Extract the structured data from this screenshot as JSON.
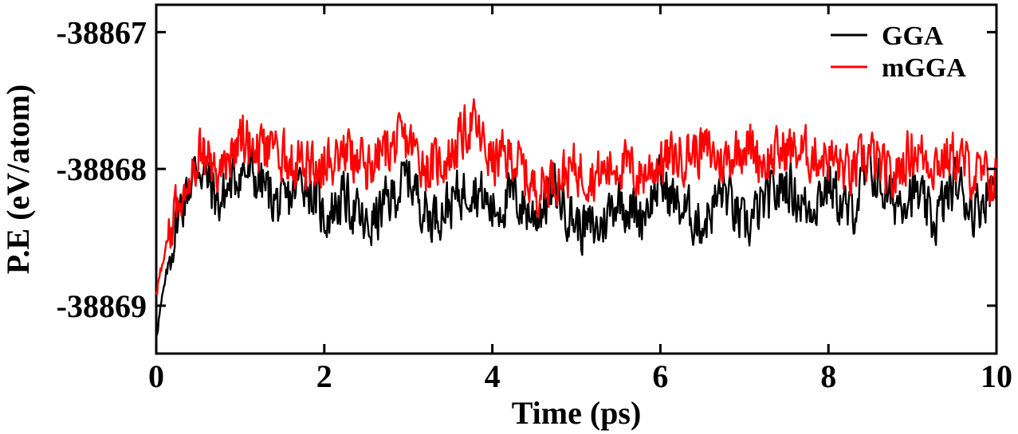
{
  "chart_data": {
    "type": "line",
    "xlabel": "Time (ps)",
    "ylabel": "P.E (eV/atom)",
    "xlim": [
      0,
      10
    ],
    "ylim": [
      -38869.35,
      -38866.8
    ],
    "xticks": [
      0,
      2,
      4,
      6,
      8,
      10
    ],
    "xtick_labels": [
      "0",
      "2",
      "4",
      "6",
      "8",
      "10"
    ],
    "yticks": [
      -38867,
      -38868,
      -38869
    ],
    "ytick_labels": [
      "-38867",
      "-38868",
      "-38869"
    ],
    "grid": false,
    "legend_position": "top-right",
    "x": [
      0.0,
      0.25,
      0.5,
      0.75,
      1.0,
      1.25,
      1.5,
      1.75,
      2.0,
      2.25,
      2.5,
      2.75,
      3.0,
      3.25,
      3.5,
      3.75,
      4.0,
      4.25,
      4.5,
      4.75,
      5.0,
      5.25,
      5.5,
      5.75,
      6.0,
      6.25,
      6.5,
      6.75,
      7.0,
      7.25,
      7.5,
      7.75,
      8.0,
      8.25,
      8.5,
      8.75,
      9.0,
      9.25,
      9.5,
      9.75,
      10.0
    ],
    "series": [
      {
        "name": "GGA",
        "color": "#000000",
        "values": [
          -38869.2,
          -38868.35,
          -38867.95,
          -38868.25,
          -38868.0,
          -38868.1,
          -38868.3,
          -38868.05,
          -38868.35,
          -38868.2,
          -38868.45,
          -38868.25,
          -38868.05,
          -38868.35,
          -38868.25,
          -38868.1,
          -38868.3,
          -38868.2,
          -38868.35,
          -38868.15,
          -38868.4,
          -38868.45,
          -38868.2,
          -38868.35,
          -38868.1,
          -38868.3,
          -38868.4,
          -38868.15,
          -38868.45,
          -38868.25,
          -38868.1,
          -38868.3,
          -38868.1,
          -38868.35,
          -38868.0,
          -38868.25,
          -38868.15,
          -38868.4,
          -38868.1,
          -38868.3,
          -38868.05
        ]
      },
      {
        "name": "mGGA",
        "color": "#ff0000",
        "values": [
          -38868.9,
          -38868.25,
          -38867.85,
          -38868.05,
          -38867.75,
          -38867.9,
          -38867.9,
          -38868.0,
          -38867.95,
          -38867.85,
          -38868.0,
          -38867.85,
          -38867.8,
          -38868.0,
          -38867.9,
          -38867.65,
          -38867.95,
          -38867.9,
          -38868.15,
          -38868.05,
          -38868.0,
          -38868.05,
          -38867.95,
          -38868.05,
          -38867.95,
          -38867.9,
          -38867.85,
          -38867.95,
          -38867.8,
          -38867.95,
          -38867.85,
          -38867.9,
          -38867.9,
          -38868.05,
          -38867.9,
          -38868.1,
          -38867.85,
          -38867.95,
          -38867.9,
          -38868.05,
          -38868.1
        ]
      }
    ]
  }
}
